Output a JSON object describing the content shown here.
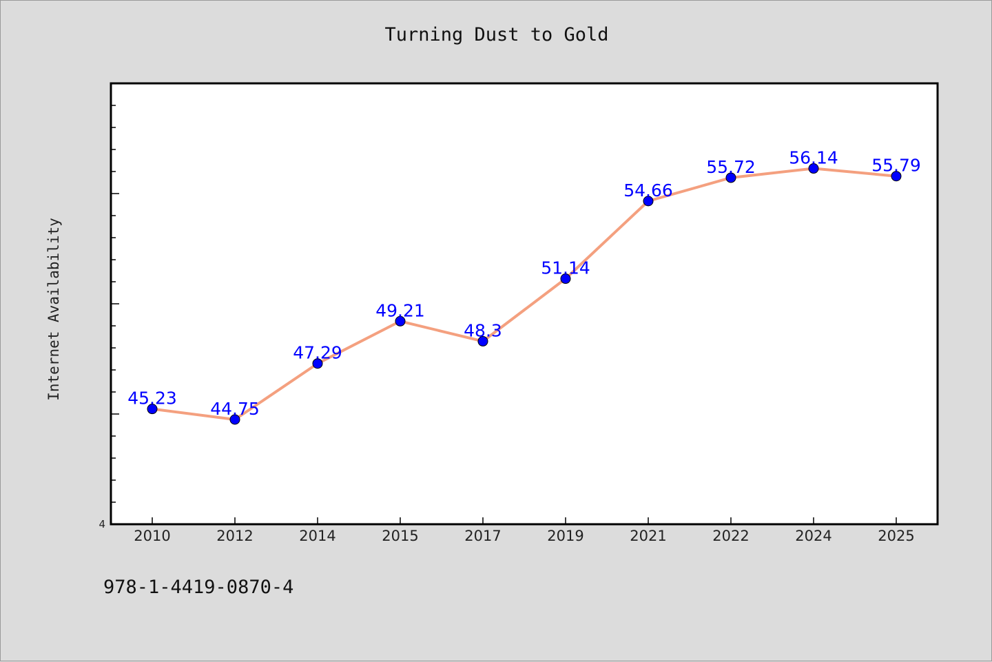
{
  "chart_data": {
    "type": "line",
    "title": "Turning Dust to Gold",
    "xlabel": "",
    "ylabel": "Internet Availability",
    "categories": [
      "2010",
      "2012",
      "2014",
      "2015",
      "2017",
      "2019",
      "2021",
      "2022",
      "2024",
      "2025"
    ],
    "series": [
      {
        "values": [
          45.23,
          44.75,
          47.29,
          49.21,
          48.3,
          51.14,
          54.66,
          55.72,
          56.14,
          55.79
        ],
        "labels": [
          "45.23",
          "44.75",
          "47.29",
          "49.21",
          "48.3",
          "51.14",
          "54.66",
          "55.72",
          "56.14",
          "55.79"
        ]
      }
    ],
    "ylim": [
      40,
      60
    ],
    "y_tick_label": "4",
    "grid": false,
    "legend": "none",
    "colors": {
      "line": "#f4a07f",
      "marker": "#0000ff",
      "data_label": "#0000ff",
      "plot_bg": "#ffffff",
      "page_bg": "#dcdcdc"
    }
  },
  "footer": {
    "code": "978-1-4419-0870-4"
  }
}
